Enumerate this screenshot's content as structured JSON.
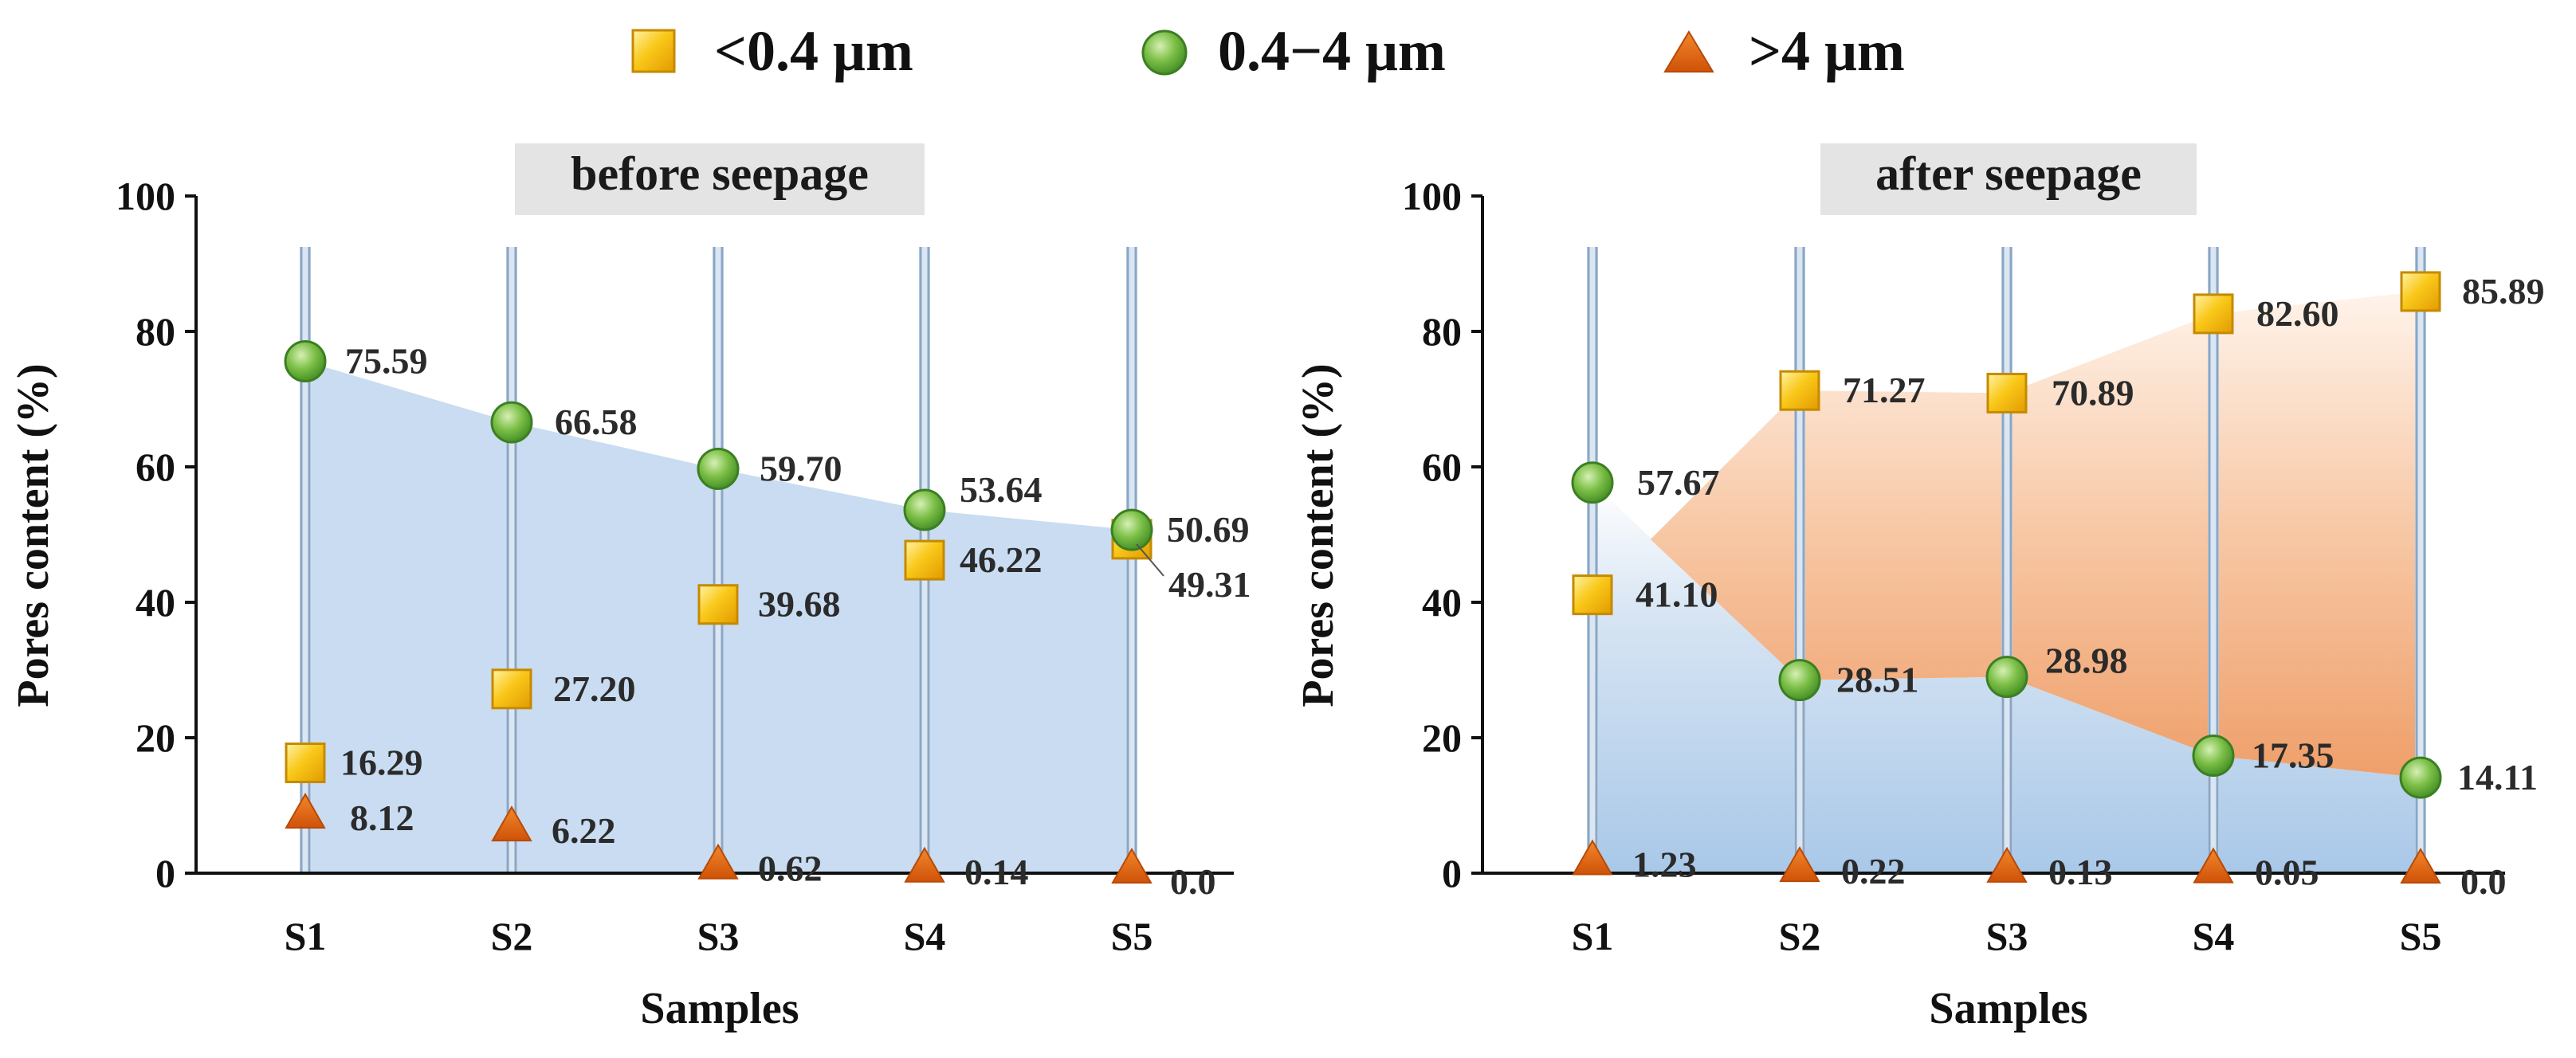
{
  "legend": [
    {
      "label": "<0.4 μm",
      "marker": "square-icon",
      "color": "#f2c200"
    },
    {
      "label": "0.4−4 μm",
      "marker": "circle-icon",
      "color": "#6fb33f"
    },
    {
      "label": ">4 μm",
      "marker": "triangle-icon",
      "color": "#e0660e"
    }
  ],
  "chart_data": [
    {
      "type": "line",
      "title": "before seepage",
      "xlabel": "Samples",
      "ylabel": "Pores content (%)",
      "ylim": [
        0,
        100
      ],
      "yticks": [
        "0",
        "20",
        "40",
        "60",
        "80",
        "100"
      ],
      "categories": [
        "S1",
        "S2",
        "S3",
        "S4",
        "S5"
      ],
      "series": [
        {
          "name": "<0.4 μm",
          "values": [
            16.29,
            27.2,
            39.68,
            46.22,
            49.31
          ],
          "labels": [
            "16.29",
            "27.20",
            "39.68",
            "46.22",
            "49.31"
          ]
        },
        {
          "name": "0.4−4 μm",
          "values": [
            75.59,
            66.58,
            59.7,
            53.64,
            50.69
          ],
          "labels": [
            "75.59",
            "66.58",
            "59.70",
            "53.64",
            "50.69"
          ]
        },
        {
          "name": ">4 μm",
          "values": [
            8.12,
            6.22,
            0.62,
            0.14,
            0.0
          ],
          "labels": [
            "8.12",
            "6.22",
            "0.62",
            "0.14",
            "0.0"
          ]
        }
      ]
    },
    {
      "type": "line",
      "title": "after seepage",
      "xlabel": "Samples",
      "ylabel": "Pores content (%)",
      "ylim": [
        0,
        100
      ],
      "yticks": [
        "0",
        "20",
        "40",
        "60",
        "80",
        "100"
      ],
      "categories": [
        "S1",
        "S2",
        "S3",
        "S4",
        "S5"
      ],
      "series": [
        {
          "name": "<0.4 μm",
          "values": [
            41.1,
            71.27,
            70.89,
            82.6,
            85.89
          ],
          "labels": [
            "41.10",
            "71.27",
            "70.89",
            "82.60",
            "85.89"
          ]
        },
        {
          "name": "0.4−4 μm",
          "values": [
            57.67,
            28.51,
            28.98,
            17.35,
            14.11
          ],
          "labels": [
            "57.67",
            "28.51",
            "28.98",
            "17.35",
            "14.11"
          ]
        },
        {
          "name": ">4 μm",
          "values": [
            1.23,
            0.22,
            0.13,
            0.05,
            0.0
          ],
          "labels": [
            "1.23",
            "0.22",
            "0.13",
            "0.05",
            "0.0"
          ]
        }
      ]
    }
  ]
}
